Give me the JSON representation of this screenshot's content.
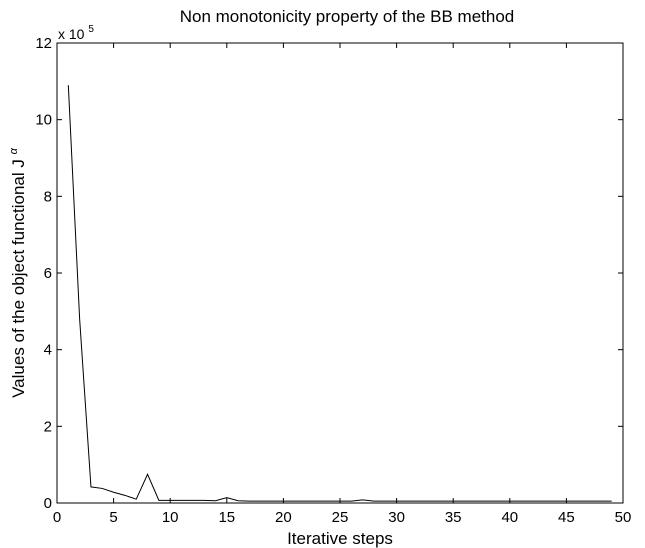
{
  "chart_data": {
    "type": "line",
    "title": "Non monotonicity property of the BB method",
    "xlabel": "Iterative steps",
    "ylabel": "Values of the object functional J",
    "ylabel_superscript": "α",
    "y_multiplier_base": "x 10",
    "y_multiplier_exp": "5",
    "xlim": [
      0,
      50
    ],
    "ylim": [
      0,
      12
    ],
    "x_ticks": [
      0,
      5,
      10,
      15,
      20,
      25,
      30,
      35,
      40,
      45,
      50
    ],
    "x_tick_labels": [
      "0",
      "5",
      "10",
      "15",
      "20",
      "25",
      "30",
      "35",
      "40",
      "45",
      "50"
    ],
    "y_ticks": [
      0,
      2,
      4,
      6,
      8,
      10,
      12
    ],
    "y_tick_labels": [
      "0",
      "2",
      "4",
      "6",
      "8",
      "10",
      "12"
    ],
    "grid": false,
    "series": [
      {
        "color": "#000000",
        "x": [
          1,
          2,
          3,
          4,
          5,
          6,
          7,
          8,
          9,
          10,
          11,
          12,
          13,
          14,
          15,
          16,
          17,
          18,
          19,
          20,
          21,
          22,
          23,
          24,
          25,
          26,
          27,
          28,
          29,
          30,
          31,
          32,
          33,
          34,
          35,
          36,
          37,
          38,
          39,
          40,
          41,
          42,
          43,
          44,
          45,
          46,
          47,
          48,
          49
        ],
        "y": [
          10.9,
          4.8,
          0.42,
          0.38,
          0.28,
          0.2,
          0.1,
          0.75,
          0.07,
          0.07,
          0.07,
          0.07,
          0.07,
          0.06,
          0.14,
          0.06,
          0.05,
          0.05,
          0.05,
          0.05,
          0.05,
          0.05,
          0.05,
          0.05,
          0.05,
          0.05,
          0.08,
          0.05,
          0.05,
          0.05,
          0.05,
          0.05,
          0.05,
          0.05,
          0.05,
          0.05,
          0.05,
          0.05,
          0.05,
          0.05,
          0.05,
          0.05,
          0.05,
          0.05,
          0.05,
          0.05,
          0.05,
          0.05,
          0.05
        ]
      }
    ]
  }
}
